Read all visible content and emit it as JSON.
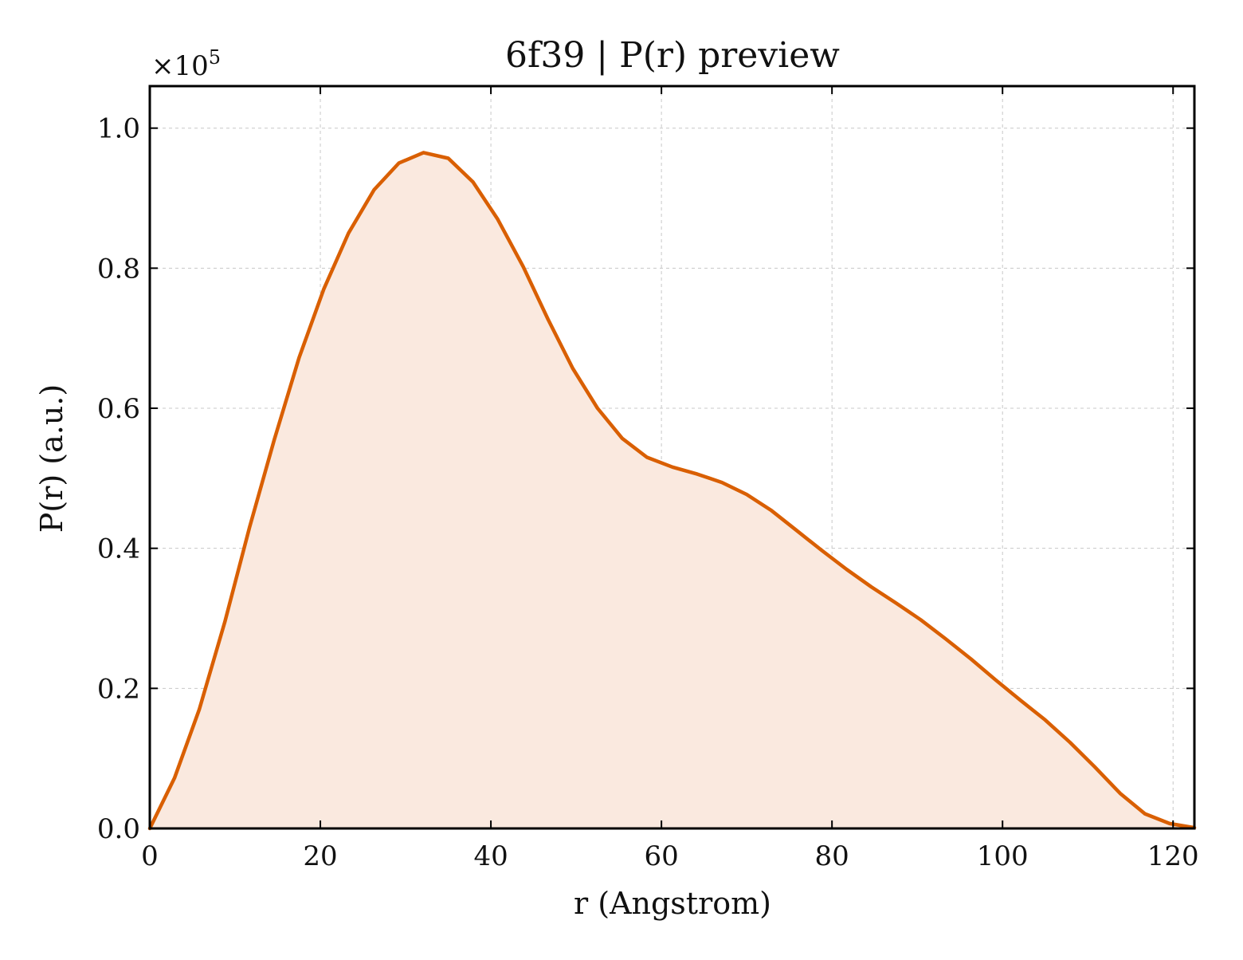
{
  "chart_data": {
    "type": "area",
    "title": "6f39 | P(r) preview",
    "xlabel": "r (Angstrom)",
    "ylabel": "P(r) (a.u.)",
    "y_scale_label": "×10",
    "y_scale_exponent": "5",
    "xlim": [
      0,
      122.5
    ],
    "ylim": [
      0,
      1.06
    ],
    "y_multiplier": 100000,
    "x_ticks": [
      0,
      20,
      40,
      60,
      80,
      100,
      120
    ],
    "x_tick_labels": [
      "0",
      "20",
      "40",
      "60",
      "80",
      "100",
      "120"
    ],
    "y_ticks": [
      0.0,
      0.2,
      0.4,
      0.6,
      0.8,
      1.0
    ],
    "y_tick_labels": [
      "0.0",
      "0.2",
      "0.4",
      "0.6",
      "0.8",
      "1.0"
    ],
    "grid": true,
    "line_color": "#d95f02",
    "fill_color": "#fae9df",
    "series": [
      {
        "x": [
          0,
          2.9,
          5.8,
          8.8,
          11.7,
          14.6,
          17.5,
          20.4,
          23.3,
          26.3,
          29.2,
          32.1,
          35.0,
          37.9,
          40.8,
          43.8,
          46.7,
          49.6,
          52.5,
          55.4,
          58.3,
          61.3,
          64.2,
          67.1,
          70.0,
          72.9,
          75.8,
          78.8,
          81.7,
          84.6,
          87.5,
          90.4,
          93.3,
          96.3,
          99.2,
          102.1,
          105.0,
          107.9,
          110.8,
          113.8,
          116.7,
          119.6,
          122.5
        ],
        "values": [
          0.0,
          0.072,
          0.17,
          0.295,
          0.43,
          0.555,
          0.672,
          0.77,
          0.85,
          0.912,
          0.95,
          0.965,
          0.957,
          0.923,
          0.87,
          0.802,
          0.727,
          0.657,
          0.6,
          0.557,
          0.53,
          0.516,
          0.506,
          0.494,
          0.477,
          0.454,
          0.426,
          0.397,
          0.37,
          0.345,
          0.322,
          0.298,
          0.271,
          0.242,
          0.212,
          0.183,
          0.155,
          0.123,
          0.088,
          0.05,
          0.021,
          0.007,
          0.001
        ]
      }
    ]
  }
}
